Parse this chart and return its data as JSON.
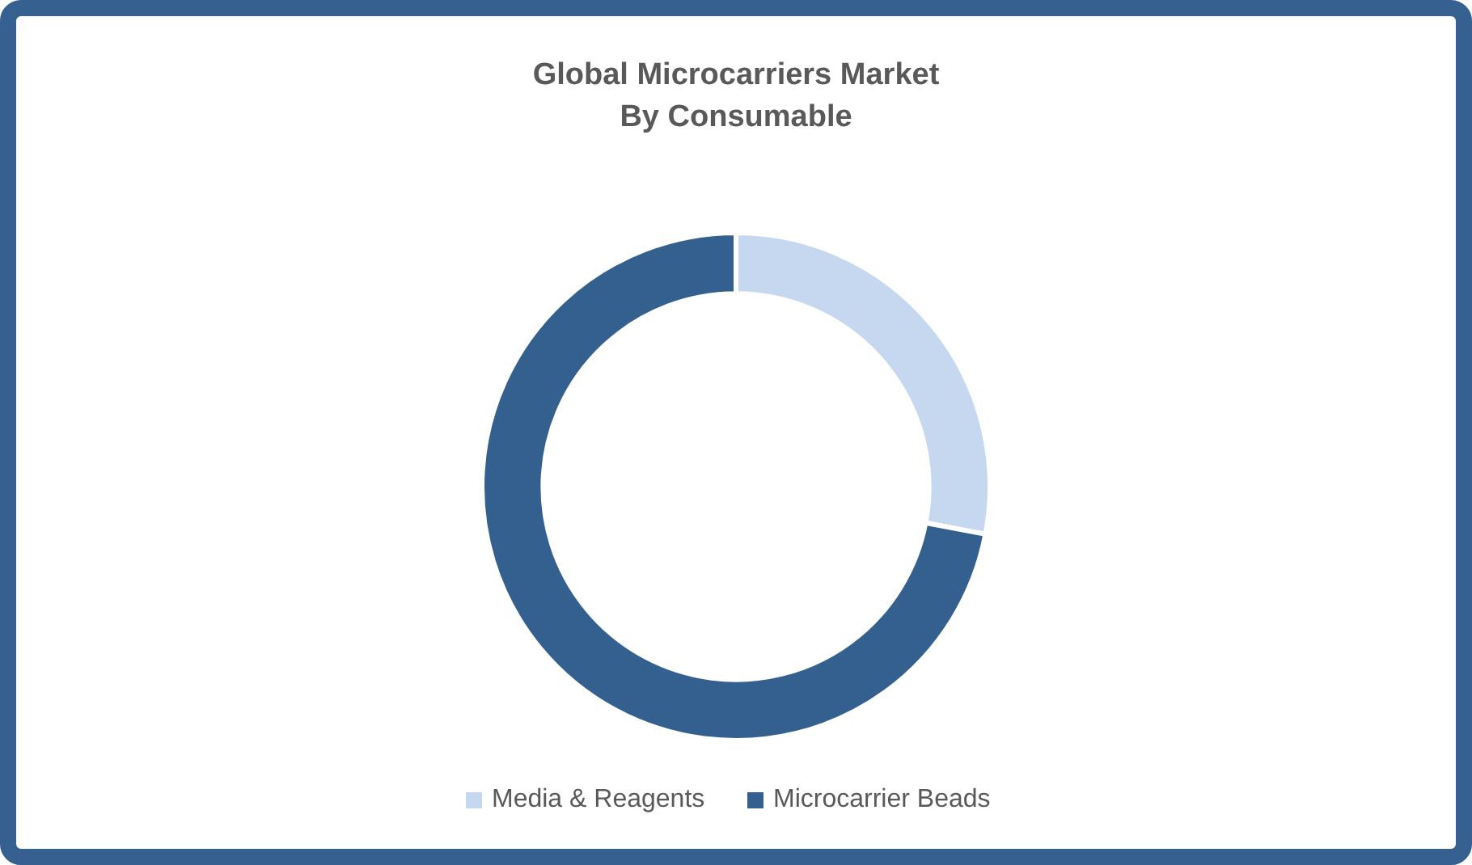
{
  "chart_data": {
    "type": "donut",
    "title": "Global Microcarriers Market\nBy Consumable",
    "categories": [
      "Media & Reagents",
      "Microcarrier Beads"
    ],
    "values": [
      28,
      72
    ],
    "colors": [
      "#c5d8f0",
      "#34608f"
    ],
    "legend": "bottom"
  }
}
